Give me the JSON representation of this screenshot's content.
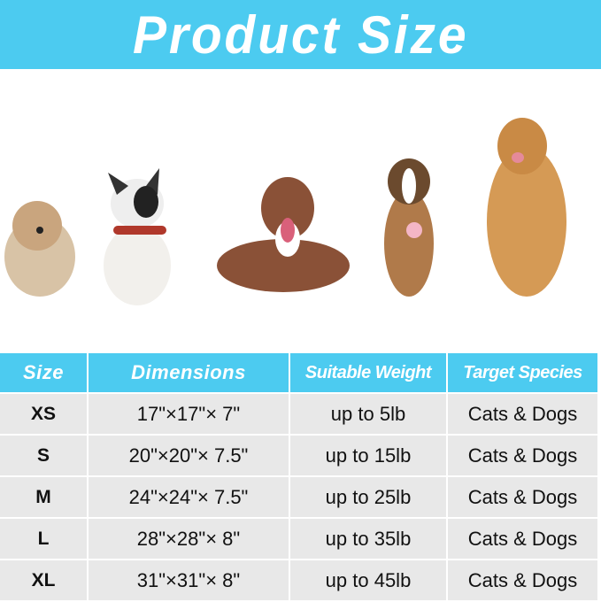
{
  "banner": {
    "title": "Product Size",
    "color": "#4ccbf0"
  },
  "dogs": [
    "havanese-dog",
    "french-bulldog",
    "pitbull-dog",
    "australian-shepherd-dog",
    "golden-retriever-dog"
  ],
  "table": {
    "headers": [
      "Size",
      "Dimensions",
      "Suitable Weight",
      "Target Species"
    ],
    "rows": [
      [
        "XS",
        "17\"×17\"× 7\"",
        "up to 5lb",
        "Cats & Dogs"
      ],
      [
        "S",
        "20\"×20\"× 7.5\"",
        "up to 15lb",
        "Cats & Dogs"
      ],
      [
        "M",
        "24\"×24\"× 7.5\"",
        "up to 25lb",
        "Cats & Dogs"
      ],
      [
        "L",
        "28\"×28\"× 8\"",
        "up to 35lb",
        "Cats & Dogs"
      ],
      [
        "XL",
        "31\"×31\"× 8\"",
        "up to 45lb",
        "Cats & Dogs"
      ]
    ]
  }
}
